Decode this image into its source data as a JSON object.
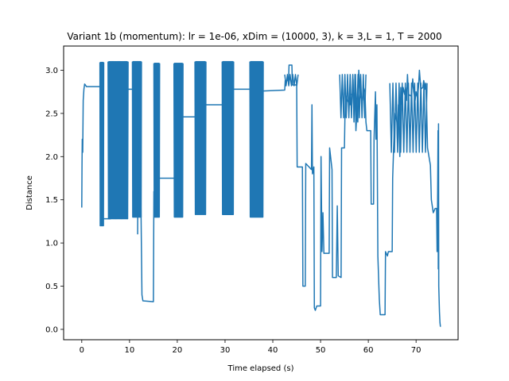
{
  "chart_data": {
    "type": "line",
    "title": "Variant 1b (momentum): lr = 1e-06, xDim = (10000, 3), k = 3,L = 1, T = 2000",
    "xlabel": "Time elapsed (s)",
    "ylabel": "Distance",
    "xlim": [
      -3.8,
      78.8
    ],
    "ylim": [
      -0.12,
      3.28
    ],
    "xticks": [
      0,
      10,
      20,
      30,
      40,
      50,
      60,
      70
    ],
    "yticks": [
      0.0,
      0.5,
      1.0,
      1.5,
      2.0,
      2.5,
      3.0
    ],
    "xtick_labels": [
      "0",
      "10",
      "20",
      "30",
      "40",
      "50",
      "60",
      "70"
    ],
    "ytick_labels": [
      "0.0",
      "0.5",
      "1.0",
      "1.5",
      "2.0",
      "2.5",
      "3.0"
    ],
    "grid": false,
    "legend": "none",
    "line_color": "#1f77b4",
    "series": [
      {
        "segments": [
          {
            "type": "line",
            "points": [
              [
                0.0,
                1.41
              ],
              [
                0.05,
                1.9
              ],
              [
                0.1,
                2.2
              ],
              [
                0.2,
                2.05
              ],
              [
                0.3,
                2.65
              ],
              [
                0.45,
                2.78
              ],
              [
                0.6,
                2.84
              ],
              [
                1.0,
                2.81
              ],
              [
                3.8,
                2.81
              ]
            ]
          },
          {
            "type": "osc",
            "x0": 3.8,
            "x1": 4.6,
            "hi": 3.09,
            "lo": 1.2,
            "n": 7
          },
          {
            "type": "line",
            "points": [
              [
                4.6,
                1.28
              ],
              [
                6.0,
                1.28
              ],
              [
                6.1,
                2.3
              ],
              [
                8.2,
                2.3
              ]
            ]
          },
          {
            "type": "osc",
            "x0": 5.5,
            "x1": 9.7,
            "hi": 3.1,
            "lo": 1.28,
            "n": 22
          },
          {
            "type": "line",
            "points": [
              [
                9.7,
                2.78
              ],
              [
                11.6,
                2.78
              ]
            ]
          },
          {
            "type": "osc",
            "x0": 10.6,
            "x1": 12.5,
            "hi": 3.1,
            "lo": 1.3,
            "n": 14
          },
          {
            "type": "line",
            "points": [
              [
                11.7,
                1.1
              ],
              [
                11.8,
                2.7
              ],
              [
                12.4,
                1.4
              ],
              [
                12.5,
                0.9
              ],
              [
                12.6,
                0.4
              ],
              [
                12.8,
                0.33
              ],
              [
                15.0,
                0.32
              ],
              [
                15.1,
                1.6
              ]
            ]
          },
          {
            "type": "osc",
            "x0": 15.1,
            "x1": 16.3,
            "hi": 3.08,
            "lo": 1.3,
            "n": 9
          },
          {
            "type": "line",
            "points": [
              [
                16.3,
                1.75
              ],
              [
                19.5,
                1.75
              ]
            ]
          },
          {
            "type": "osc",
            "x0": 19.3,
            "x1": 21.2,
            "hi": 3.08,
            "lo": 1.3,
            "n": 12
          },
          {
            "type": "line",
            "points": [
              [
                21.2,
                2.46
              ],
              [
                23.7,
                2.46
              ]
            ]
          },
          {
            "type": "osc",
            "x0": 23.7,
            "x1": 26.0,
            "hi": 3.1,
            "lo": 1.33,
            "n": 14
          },
          {
            "type": "line",
            "points": [
              [
                26.0,
                2.6
              ],
              [
                29.6,
                2.6
              ]
            ]
          },
          {
            "type": "osc",
            "x0": 29.4,
            "x1": 31.8,
            "hi": 3.1,
            "lo": 1.33,
            "n": 16
          },
          {
            "type": "line",
            "points": [
              [
                31.8,
                2.78
              ],
              [
                35.5,
                2.78
              ]
            ]
          },
          {
            "type": "osc",
            "x0": 35.2,
            "x1": 38.0,
            "hi": 3.1,
            "lo": 1.3,
            "n": 18
          },
          {
            "type": "line",
            "points": [
              [
                38.0,
                2.76
              ],
              [
                42.5,
                2.77
              ],
              [
                42.6,
                2.88
              ],
              [
                43.3,
                2.88
              ],
              [
                43.4,
                3.06
              ],
              [
                44.0,
                3.06
              ],
              [
                44.1,
                2.83
              ],
              [
                45.0,
                2.83
              ],
              [
                45.1,
                1.88
              ],
              [
                46.2,
                1.88
              ],
              [
                46.3,
                0.5
              ],
              [
                46.8,
                0.5
              ],
              [
                46.9,
                1.92
              ],
              [
                48.1,
                1.85
              ],
              [
                48.2,
                2.6
              ],
              [
                48.3,
                1.8
              ],
              [
                48.6,
                1.88
              ],
              [
                48.7,
                0.25
              ],
              [
                48.9,
                0.22
              ],
              [
                49.2,
                0.27
              ],
              [
                50.0,
                0.27
              ],
              [
                50.1,
                2.0
              ],
              [
                50.3,
                0.9
              ],
              [
                50.5,
                1.35
              ],
              [
                50.7,
                0.88
              ],
              [
                51.8,
                0.88
              ],
              [
                51.9,
                2.1
              ],
              [
                52.4,
                1.85
              ],
              [
                52.5,
                0.6
              ],
              [
                53.3,
                0.6
              ],
              [
                53.5,
                1.43
              ],
              [
                53.7,
                0.62
              ],
              [
                54.3,
                0.6
              ],
              [
                54.4,
                2.1
              ],
              [
                55.0,
                2.1
              ],
              [
                55.1,
                2.45
              ],
              [
                55.3,
                2.7
              ],
              [
                55.6,
                2.65
              ],
              [
                56.2,
                2.6
              ],
              [
                56.3,
                2.72
              ],
              [
                56.7,
                2.72
              ],
              [
                56.8,
                2.9
              ],
              [
                57.0,
                2.4
              ],
              [
                57.2,
                2.95
              ],
              [
                57.4,
                2.3
              ],
              [
                57.6,
                2.5
              ],
              [
                57.8,
                2.4
              ],
              [
                58.0,
                3.0
              ],
              [
                58.3,
                2.7
              ],
              [
                58.8,
                2.65
              ],
              [
                59.0,
                2.8
              ],
              [
                59.3,
                2.75
              ],
              [
                59.5,
                2.4
              ],
              [
                59.7,
                2.3
              ],
              [
                60.5,
                2.3
              ],
              [
                60.6,
                1.45
              ],
              [
                61.1,
                1.45
              ],
              [
                61.2,
                2.2
              ],
              [
                61.5,
                2.75
              ],
              [
                61.6,
                2.2
              ],
              [
                61.8,
                2.6
              ],
              [
                62.0,
                0.85
              ],
              [
                62.3,
                0.35
              ],
              [
                62.5,
                0.17
              ],
              [
                63.5,
                0.17
              ],
              [
                63.6,
                0.9
              ],
              [
                64.0,
                0.85
              ],
              [
                64.2,
                0.9
              ],
              [
                65.0,
                0.9
              ],
              [
                65.1,
                1.75
              ],
              [
                65.3,
                2.1
              ],
              [
                65.6,
                2.5
              ],
              [
                66.0,
                2.4
              ],
              [
                66.1,
                2.2
              ],
              [
                66.3,
                2.6
              ],
              [
                66.6,
                2.0
              ],
              [
                66.8,
                2.8
              ],
              [
                67.0,
                2.6
              ],
              [
                67.3,
                2.8
              ],
              [
                67.6,
                2.72
              ],
              [
                67.8,
                2.8
              ],
              [
                68.0,
                2.65
              ],
              [
                68.2,
                2.95
              ],
              [
                68.4,
                2.72
              ],
              [
                69.0,
                2.7
              ],
              [
                69.3,
                2.9
              ],
              [
                69.5,
                2.75
              ],
              [
                69.8,
                2.65
              ],
              [
                70.0,
                2.75
              ],
              [
                70.3,
                2.68
              ],
              [
                70.5,
                2.8
              ],
              [
                70.7,
                3.0
              ],
              [
                71.0,
                2.78
              ],
              [
                71.4,
                2.8
              ],
              [
                71.6,
                2.88
              ],
              [
                71.9,
                2.78
              ],
              [
                72.0,
                2.85
              ],
              [
                72.2,
                2.6
              ],
              [
                72.4,
                2.1
              ],
              [
                73.0,
                1.9
              ],
              [
                73.2,
                1.5
              ],
              [
                73.6,
                1.35
              ],
              [
                74.0,
                1.4
              ],
              [
                74.3,
                1.4
              ],
              [
                74.4,
                0.9
              ],
              [
                74.5,
                1.4
              ],
              [
                74.6,
                2.3
              ],
              [
                74.65,
                0.7
              ],
              [
                74.7,
                2.38
              ],
              [
                74.75,
                0.5
              ],
              [
                74.9,
                0.2
              ],
              [
                75.0,
                0.08
              ],
              [
                75.1,
                0.03
              ]
            ]
          },
          {
            "type": "osc",
            "x0": 42.5,
            "x1": 45.3,
            "hi": 2.95,
            "lo": 2.82,
            "n": 5
          },
          {
            "type": "osc",
            "x0": 54.0,
            "x1": 59.5,
            "hi": 2.95,
            "lo": 2.45,
            "n": 10
          },
          {
            "type": "osc",
            "x0": 64.5,
            "x1": 72.3,
            "hi": 2.85,
            "lo": 2.05,
            "n": 12
          }
        ]
      }
    ]
  }
}
